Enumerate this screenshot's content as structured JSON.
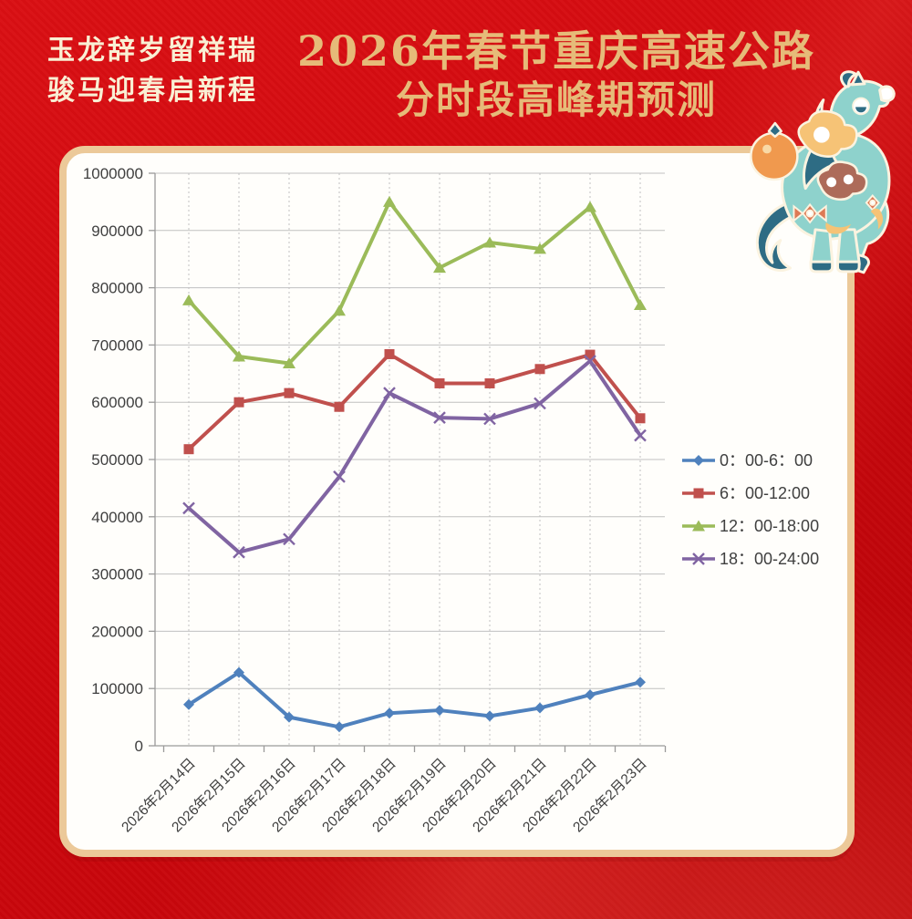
{
  "header": {
    "poem_line1": "玉龙辞岁留祥瑞",
    "poem_line2": "骏马迎春启新程",
    "title_line1": "2026年春节重庆高速公路",
    "title_line2": "分时段高峰期预测"
  },
  "colors": {
    "background_red": "#cd070d",
    "title_gold": "#e6bb79",
    "poem_cream": "#f9efd4",
    "card_border": "#ecc999",
    "card_background": "#fffefb",
    "axis_text": "#3f3f3f",
    "axis_line": "#9a9a9a",
    "gridline": "#c0c0c0",
    "series_blue": "#4F81BD",
    "series_red": "#C0504D",
    "series_green": "#9BBB59",
    "series_purple": "#8064A2"
  },
  "chart_data": {
    "type": "line",
    "title": "",
    "xlabel": "",
    "ylabel": "",
    "ylim": [
      0,
      1000000
    ],
    "ytick_step": 100000,
    "yticks": [
      0,
      100000,
      200000,
      300000,
      400000,
      500000,
      600000,
      700000,
      800000,
      900000,
      1000000
    ],
    "grid": true,
    "legend_position": "right",
    "categories": [
      "2026年2月14日",
      "2026年2月15日",
      "2026年2月16日",
      "2026年2月17日",
      "2026年2月18日",
      "2026年2月19日",
      "2026年2月20日",
      "2026年2月21日",
      "2026年2月22日",
      "2026年2月23日"
    ],
    "series": [
      {
        "name": "0：00-6：00",
        "marker": "diamond",
        "color": "#4F81BD",
        "values": [
          72000,
          128000,
          50000,
          33000,
          57000,
          62000,
          52000,
          66000,
          89000,
          111000
        ]
      },
      {
        "name": "6：00-12:00",
        "marker": "square",
        "color": "#C0504D",
        "values": [
          518000,
          600000,
          616000,
          592000,
          684000,
          633000,
          633000,
          658000,
          683000,
          572000
        ]
      },
      {
        "name": "12：00-18:00",
        "marker": "triangle",
        "color": "#9BBB59",
        "values": [
          778000,
          680000,
          668000,
          760000,
          950000,
          835000,
          879000,
          868000,
          941000,
          770000
        ]
      },
      {
        "name": "18：00-24:00",
        "marker": "x",
        "color": "#8064A2",
        "values": [
          415000,
          338000,
          361000,
          470000,
          616000,
          573000,
          571000,
          598000,
          672000,
          542000
        ]
      }
    ]
  },
  "decor": {
    "horse_illustration": "paper-cut spring-festival horse"
  }
}
